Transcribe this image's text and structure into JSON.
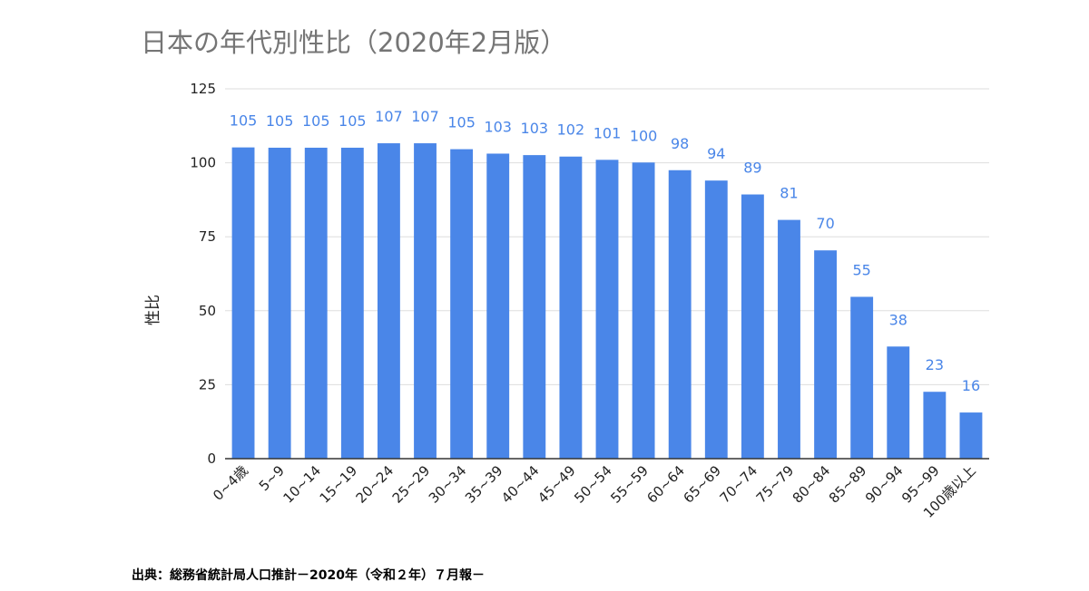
{
  "chart_data": {
    "type": "bar",
    "title": "日本の年代別性比（2020年2月版）",
    "xlabel": "",
    "ylabel": "性比",
    "ylim": [
      0,
      125
    ],
    "yticks": [
      0,
      25,
      50,
      75,
      100,
      125
    ],
    "grid": true,
    "categories": [
      "0~4歳",
      "5~9",
      "10~14",
      "15~19",
      "20~24",
      "25~29",
      "30~34",
      "35~39",
      "40~44",
      "45~49",
      "50~54",
      "55~59",
      "60~64",
      "65~69",
      "70~74",
      "75~79",
      "80~84",
      "85~89",
      "90~94",
      "95~99",
      "100歳以上"
    ],
    "values": [
      105.2,
      105.1,
      105.1,
      105.1,
      106.6,
      106.6,
      104.6,
      103.1,
      102.6,
      102.1,
      101.0,
      100.1,
      97.5,
      94.0,
      89.3,
      80.7,
      70.4,
      54.7,
      37.9,
      22.6,
      15.6
    ],
    "data_labels": [
      "105",
      "105",
      "105",
      "105",
      "107",
      "107",
      "105",
      "103",
      "103",
      "102",
      "101",
      "100",
      "98",
      "94",
      "89",
      "81",
      "70",
      "55",
      "38",
      "23",
      "16"
    ],
    "bar_color": "#4a86e8",
    "label_color": "#4a86e8",
    "grid_color": "#dddddd",
    "axis_color": "#333333"
  },
  "source": "出典：総務省統計局人口推計－2020年（令和２年）７月報－"
}
